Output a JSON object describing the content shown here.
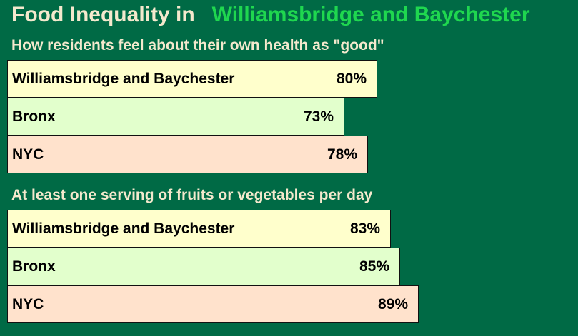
{
  "title": {
    "lead": "Food Inequality in",
    "place": "Williamsbridge and Baychester"
  },
  "colors": {
    "background": "#006a45",
    "title_text": "#f4e9cd",
    "place_text": "#1fd74f",
    "neighborhood_bar": "#ffffcc",
    "bronx_bar": "#e2ffcc",
    "nyc_bar": "#ffe2cc"
  },
  "chart_data": [
    {
      "type": "bar",
      "orientation": "horizontal",
      "title": "How residents feel about their own health as \"good\"",
      "categories": [
        "Williamsbridge and Baychester",
        "Bronx",
        "NYC"
      ],
      "values": [
        80,
        73,
        78
      ],
      "value_labels": [
        "80%",
        "73%",
        "78%"
      ],
      "unit": "%"
    },
    {
      "type": "bar",
      "orientation": "horizontal",
      "title": "At least one serving of fruits or vegetables per day",
      "categories": [
        "Williamsbridge and Baychester",
        "Bronx",
        "NYC"
      ],
      "values": [
        83,
        85,
        89
      ],
      "value_labels": [
        "83%",
        "85%",
        "89%"
      ],
      "unit": "%"
    }
  ]
}
